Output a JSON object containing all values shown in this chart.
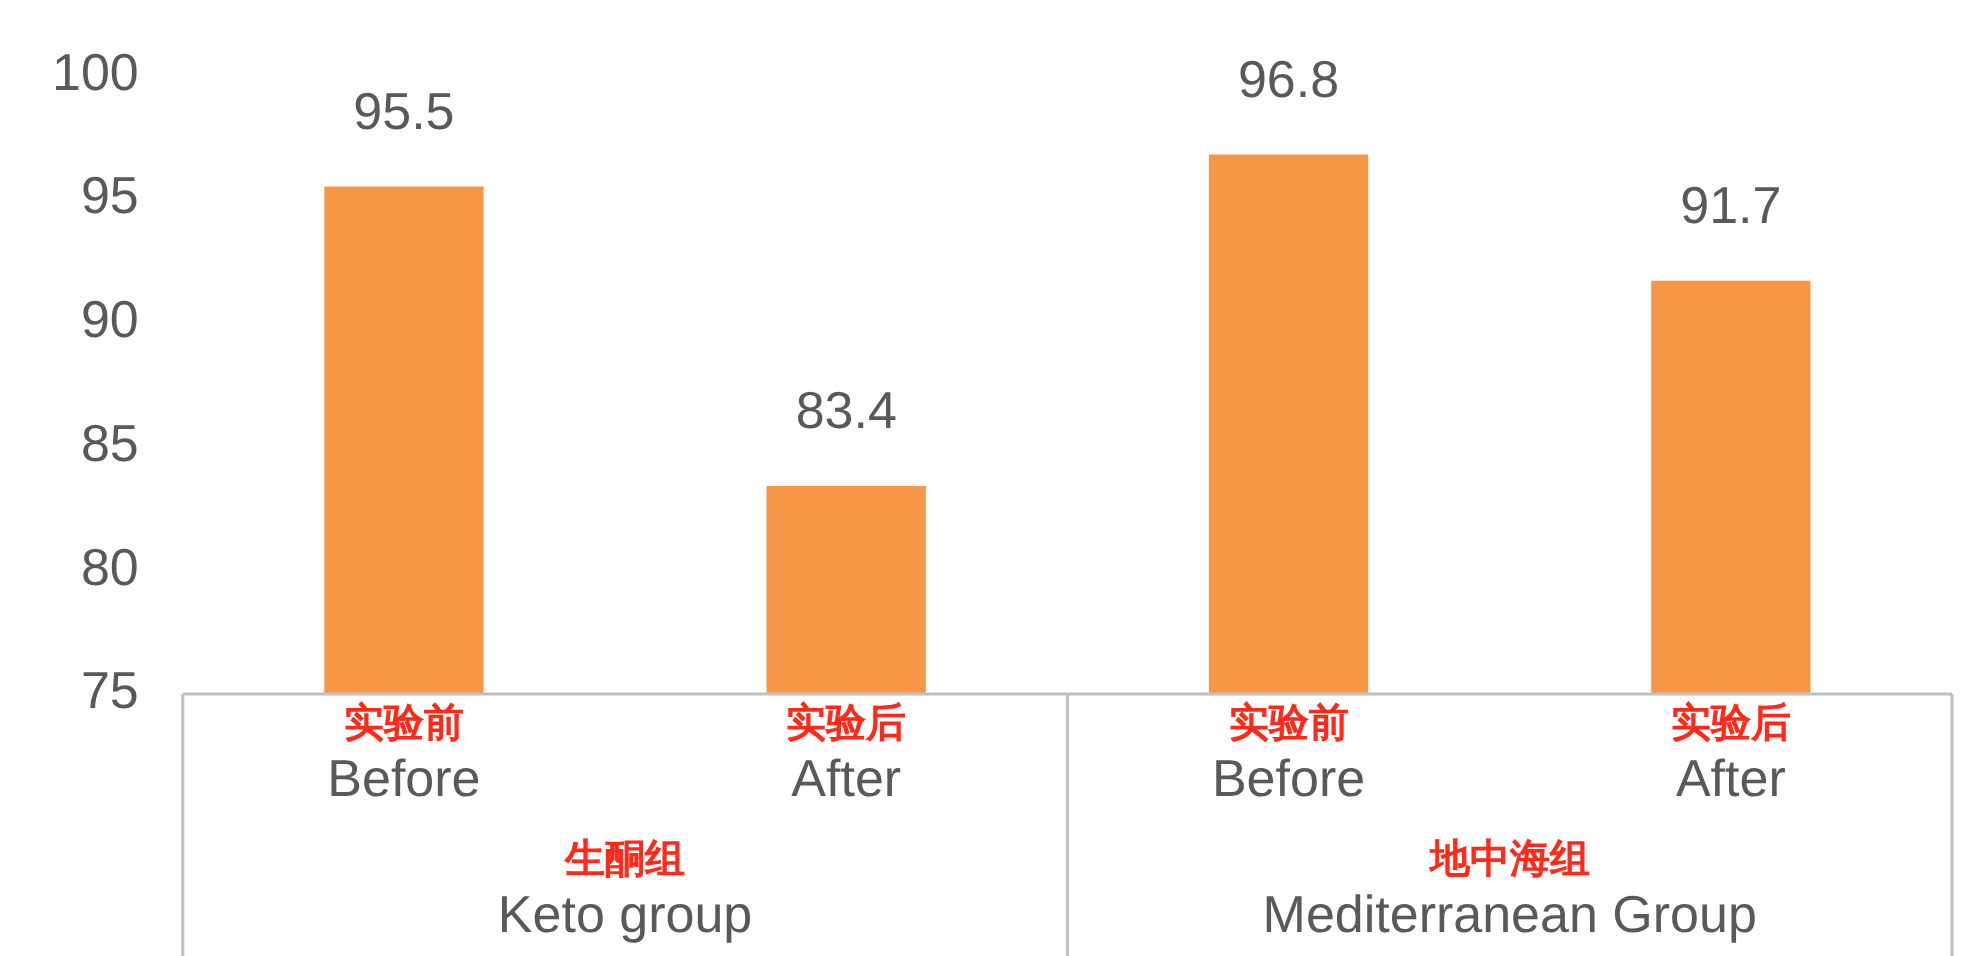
{
  "chart_data": {
    "type": "bar",
    "categories": [
      "实验前\nBefore",
      "实验后\nAfter",
      "实验前\nBefore",
      "实验后\nAfter"
    ],
    "values": [
      95.5,
      83.4,
      96.8,
      91.7
    ],
    "color": "#f79646",
    "ylim": [
      75,
      100
    ],
    "yticks": [
      75,
      80,
      85,
      90,
      95,
      100
    ],
    "data_labels": true,
    "annotations": [
      "生酮组\nKeto group",
      "地中海组\nMediterranean Group"
    ]
  }
}
